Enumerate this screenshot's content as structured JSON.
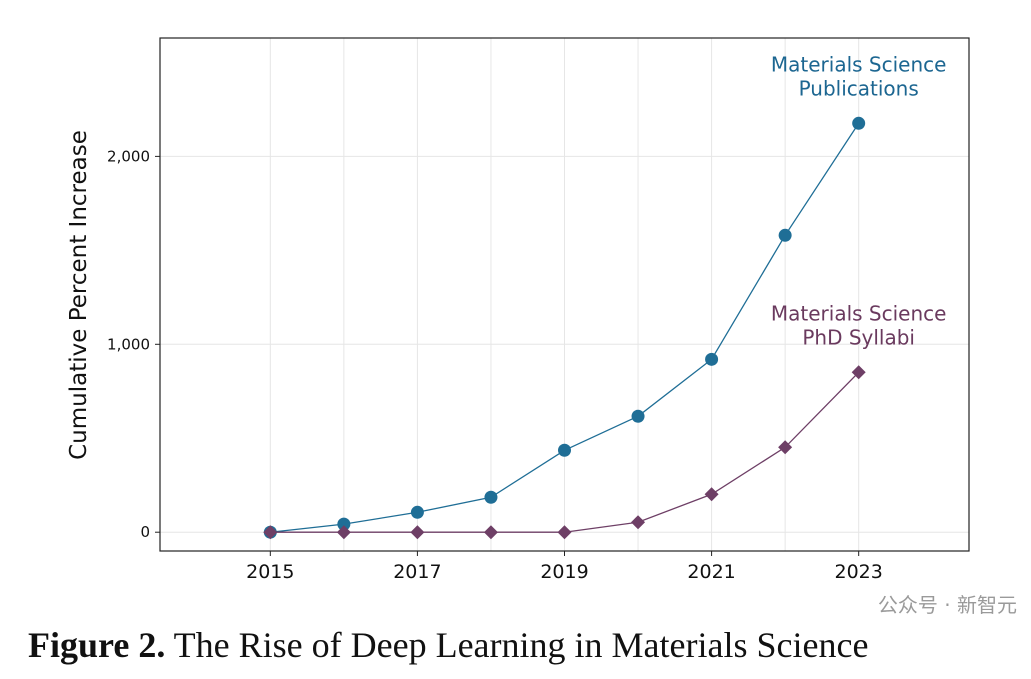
{
  "chart_data": {
    "type": "line",
    "title": "",
    "xlabel": "",
    "ylabel": "Cumulative Percent Increase",
    "x": [
      2015,
      2016,
      2017,
      2018,
      2019,
      2020,
      2021,
      2022,
      2023
    ],
    "xticks": [
      2015,
      2017,
      2019,
      2021,
      2023
    ],
    "xtick_labels": [
      "2015",
      "2017",
      "2019",
      "2021",
      "2023"
    ],
    "yticks": [
      0,
      1000,
      2000
    ],
    "ytick_labels": [
      "0",
      "1,000",
      "2,000"
    ],
    "xlim": [
      2013.5,
      2024.5
    ],
    "ylim": [
      -100,
      2630
    ],
    "grid": true,
    "legend": "none (direct labels at top-right of each series)",
    "series": [
      {
        "name": "Materials Science Publications",
        "label_lines": [
          "Materials Science",
          "Publications"
        ],
        "marker": "circle",
        "color": "#1f6e96",
        "label_color": "#1c6691",
        "values": [
          0,
          43,
          106,
          186,
          436,
          617,
          920,
          1580,
          2176
        ]
      },
      {
        "name": "Materials Science PhD Syllabi",
        "label_lines": [
          "Materials Science",
          "PhD Syllabi"
        ],
        "marker": "diamond",
        "color": "#6e3f66",
        "label_color": "#6a3a5e",
        "values": [
          0,
          0,
          0,
          0,
          0,
          53,
          202,
          452,
          851
        ]
      }
    ]
  },
  "caption": {
    "label": "Figure 2.",
    "text": " The Rise of Deep Learning in Materials Science"
  },
  "watermark": "公众号 · 新智元"
}
